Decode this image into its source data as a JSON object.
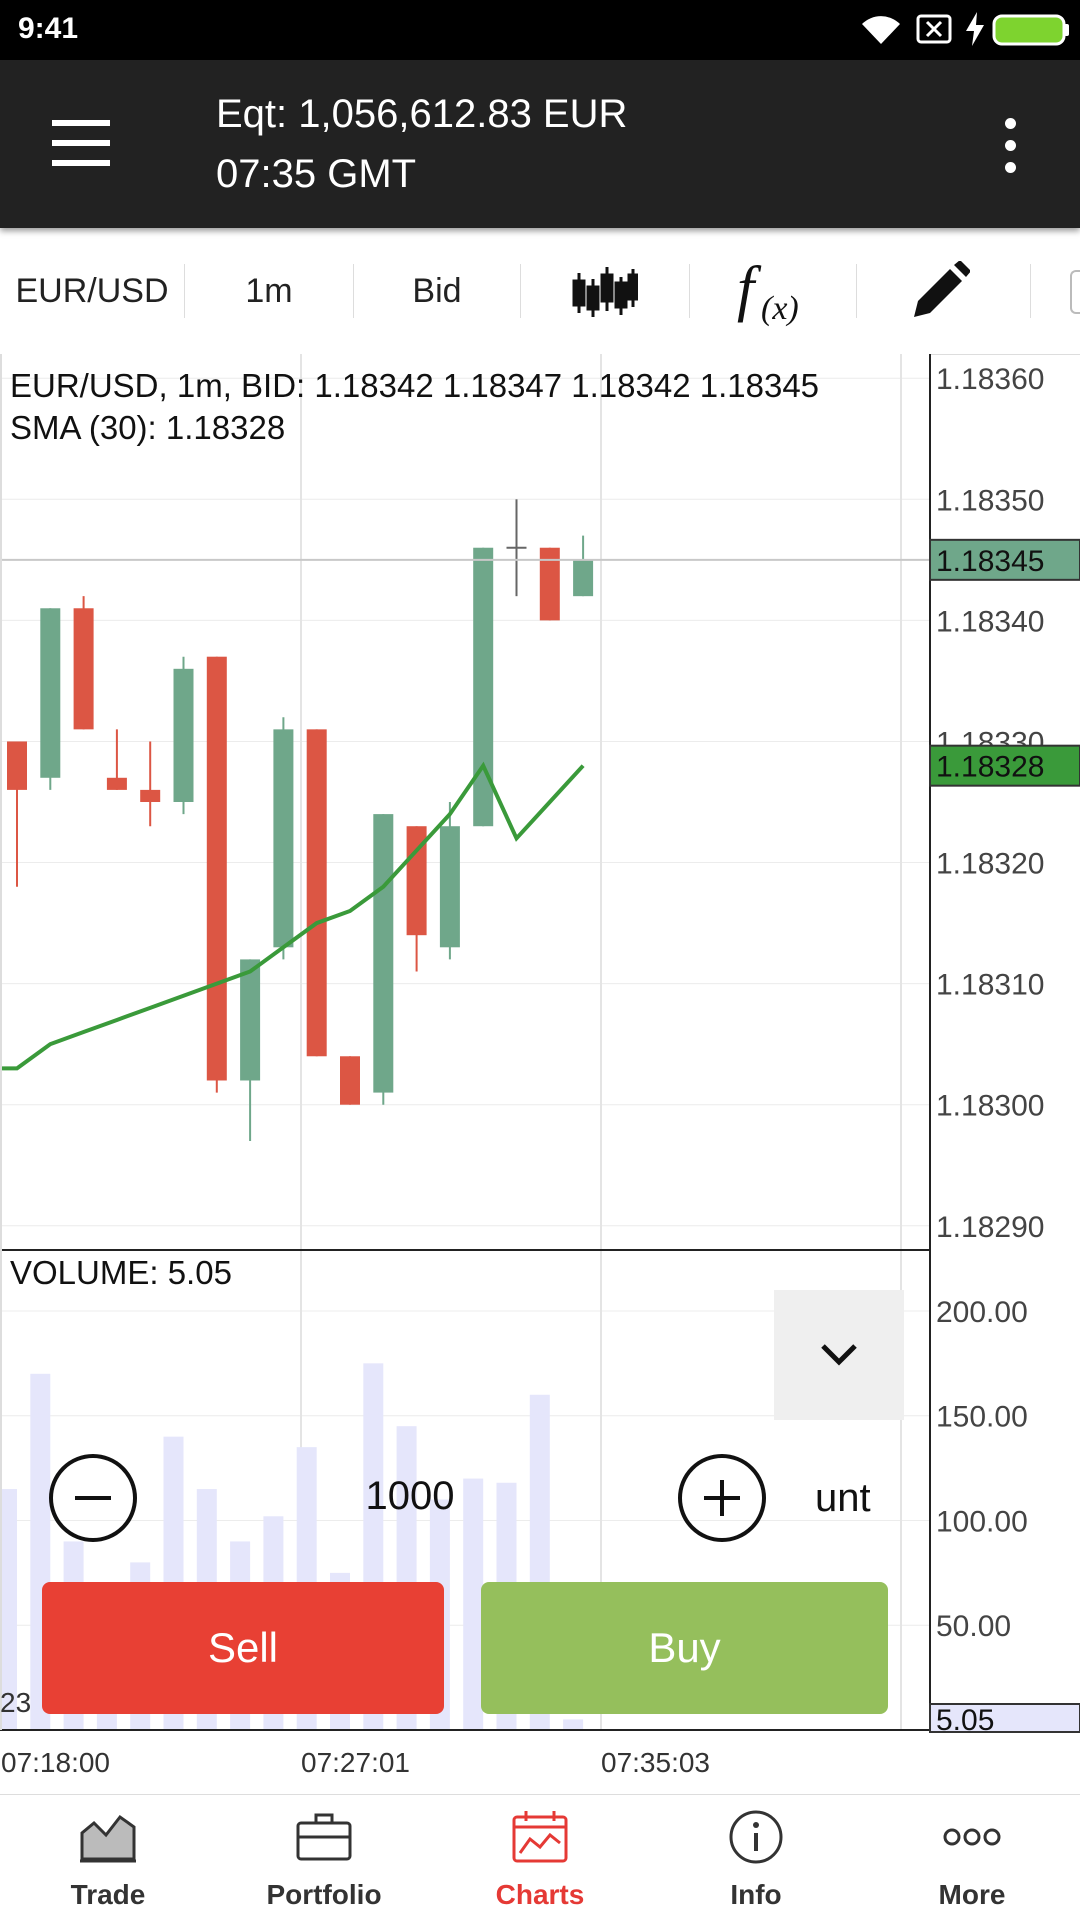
{
  "status_bar": {
    "time": "9:41"
  },
  "header": {
    "equity": "Eqt: 1,056,612.83 EUR",
    "time": "07:35 GMT"
  },
  "toolbar": {
    "symbol": "EUR/USD",
    "timeframe": "1m",
    "price_type": "Bid",
    "chart_type_icon": "candlestick-icon",
    "indicators_icon": "function-icon",
    "draw_icon": "pencil-icon"
  },
  "chart": {
    "info_line": "EUR/USD, 1m, BID: 1.18342 1.18347 1.18342 1.18345",
    "sma_line": "SMA (30): 1.18328",
    "volume_label": "VOLUME: 5.05",
    "price_ticks": [
      "1.18360",
      "1.18350",
      "1.18340",
      "1.18330",
      "1.18320",
      "1.18310",
      "1.18300",
      "1.18290"
    ],
    "volume_ticks": [
      "200.00",
      "150.00",
      "100.00",
      "50.00"
    ],
    "current_price_tag": "1.18345",
    "sma_price_tag": "1.18328",
    "current_volume_tag": "5.05",
    "partial_left_label": "23",
    "time_ticks": [
      "07:18:00",
      "07:27:01",
      "07:35:03"
    ],
    "accent_up": "#6fa78a",
    "accent_down": "#dc5644",
    "sma_color": "#3a9a3a"
  },
  "chart_data": {
    "type": "candlestick",
    "price_range": [
      1.18288,
      1.18362
    ],
    "volume_range": [
      0,
      210
    ],
    "x_ticks": [
      "07:18:00",
      "07:27:01",
      "07:35:03"
    ],
    "candles": [
      {
        "o": 1.1833,
        "h": 1.1833,
        "l": 1.18318,
        "c": 1.18326,
        "v": 115
      },
      {
        "o": 1.18327,
        "h": 1.18341,
        "l": 1.18326,
        "c": 1.18341,
        "v": 170
      },
      {
        "o": 1.18341,
        "h": 1.18342,
        "l": 1.18331,
        "c": 1.18331,
        "v": 90
      },
      {
        "o": 1.18327,
        "h": 1.18331,
        "l": 1.18326,
        "c": 1.18326,
        "v": 70
      },
      {
        "o": 1.18326,
        "h": 1.1833,
        "l": 1.18323,
        "c": 1.18325,
        "v": 80
      },
      {
        "o": 1.18325,
        "h": 1.18337,
        "l": 1.18324,
        "c": 1.18336,
        "v": 140
      },
      {
        "o": 1.18337,
        "h": 1.18337,
        "l": 1.18301,
        "c": 1.18302,
        "v": 115
      },
      {
        "o": 1.18302,
        "h": 1.18312,
        "l": 1.18297,
        "c": 1.18312,
        "v": 90
      },
      {
        "o": 1.18313,
        "h": 1.18332,
        "l": 1.18312,
        "c": 1.18331,
        "v": 102
      },
      {
        "o": 1.18331,
        "h": 1.18331,
        "l": 1.18304,
        "c": 1.18304,
        "v": 135
      },
      {
        "o": 1.18304,
        "h": 1.18304,
        "l": 1.183,
        "c": 1.183,
        "v": 75
      },
      {
        "o": 1.18301,
        "h": 1.18324,
        "l": 1.183,
        "c": 1.18324,
        "v": 175
      },
      {
        "o": 1.18323,
        "h": 1.18323,
        "l": 1.18311,
        "c": 1.18314,
        "v": 145
      },
      {
        "o": 1.18313,
        "h": 1.18325,
        "l": 1.18312,
        "c": 1.18323,
        "v": 110
      },
      {
        "o": 1.18323,
        "h": 1.18346,
        "l": 1.18323,
        "c": 1.18346,
        "v": 120
      },
      {
        "o": 1.18346,
        "h": 1.1835,
        "l": 1.18342,
        "c": 1.18346,
        "v": 118
      },
      {
        "o": 1.18346,
        "h": 1.18346,
        "l": 1.1834,
        "c": 1.1834,
        "v": 160
      },
      {
        "o": 1.18342,
        "h": 1.18347,
        "l": 1.18342,
        "c": 1.18345,
        "v": 5.05
      }
    ],
    "sma": [
      1.18303,
      1.18305,
      1.18306,
      1.18307,
      1.18308,
      1.18309,
      1.1831,
      1.18311,
      1.18313,
      1.18315,
      1.18316,
      1.18318,
      1.18321,
      1.18324,
      1.18328,
      1.18322,
      1.18325,
      1.18328
    ],
    "series": [
      {
        "name": "SMA (30)"
      },
      {
        "name": "VOLUME"
      }
    ]
  },
  "trade_panel": {
    "minus_icon": "minus-icon",
    "plus_icon": "plus-icon",
    "quantity": "1000",
    "unit": "unt",
    "sell_label": "Sell",
    "buy_label": "Buy",
    "collapse_icon": "chevron-down-icon"
  },
  "bottom_nav": [
    {
      "label": "Trade",
      "icon": "trade-chart-icon"
    },
    {
      "label": "Portfolio",
      "icon": "briefcase-icon"
    },
    {
      "label": "Charts",
      "icon": "calendar-chart-icon",
      "active": true
    },
    {
      "label": "Info",
      "icon": "info-icon"
    },
    {
      "label": "More",
      "icon": "more-dots-icon"
    }
  ]
}
